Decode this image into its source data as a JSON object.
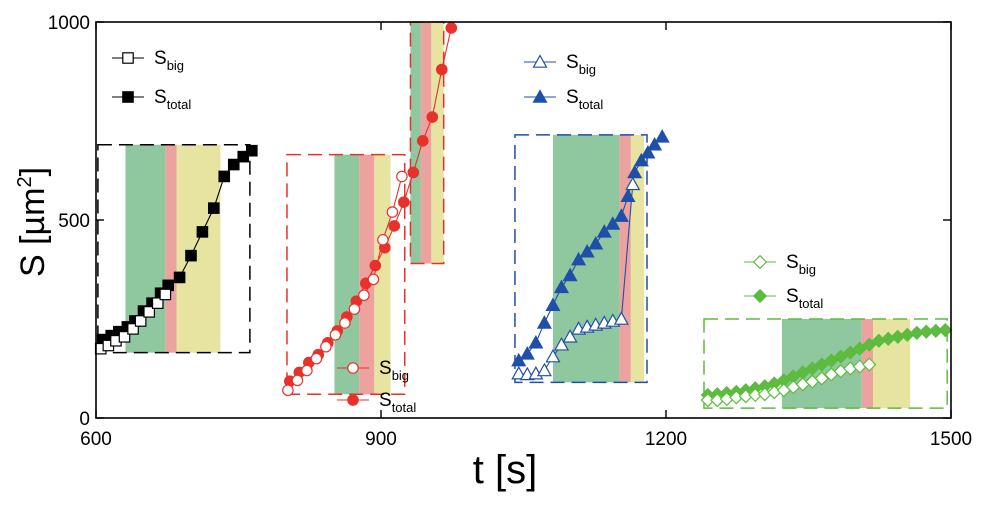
{
  "chart_data": {
    "type": "scatter",
    "xlabel": "t [s]",
    "ylabel_main": "S [µm",
    "ylabel_sup": "2",
    "ylabel_end": "]",
    "xlim": [
      600,
      1500
    ],
    "ylim": [
      0,
      1000
    ],
    "xticks": [
      {
        "value": 600,
        "label": "600"
      },
      {
        "value": 900,
        "label": "900"
      },
      {
        "value": 1200,
        "label": "1200"
      },
      {
        "value": 1500,
        "label": "1500"
      }
    ],
    "yticks": [
      {
        "value": 0,
        "label": "0"
      },
      {
        "value": 500,
        "label": "500"
      },
      {
        "value": 1000,
        "label": "1000"
      }
    ],
    "legend_main": "S",
    "legend_sub_big": "big",
    "legend_sub_total": "total",
    "groups": [
      {
        "color": "#000000",
        "marker": "square",
        "box": {
          "x": [
            602,
            762
          ],
          "y": [
            165,
            690
          ]
        },
        "bands": [
          {
            "x": [
              631,
              673
            ],
            "y": [
              165,
              690
            ],
            "color": "#8fc79f"
          },
          {
            "x": [
              673,
              685
            ],
            "y": [
              165,
              690
            ],
            "color": "#eca3a0"
          },
          {
            "x": [
              685,
              731
            ],
            "y": [
              165,
              690
            ],
            "color": "#e6e4a0"
          }
        ],
        "big": {
          "x": [
            605,
            613,
            621,
            630,
            639,
            647,
            656,
            665,
            673
          ],
          "y": [
            175,
            183,
            195,
            205,
            225,
            245,
            268,
            290,
            312
          ]
        },
        "total": {
          "x": [
            607,
            616,
            624,
            633,
            641,
            650,
            659,
            668,
            676,
            688,
            700,
            712,
            724,
            735,
            745,
            755,
            764
          ],
          "y": [
            198,
            208,
            218,
            230,
            245,
            270,
            290,
            315,
            335,
            355,
            410,
            470,
            530,
            610,
            640,
            660,
            675
          ]
        }
      },
      {
        "color": "#e8312a",
        "marker": "circle",
        "box": {
          "x": [
            801,
            925
          ],
          "y": [
            60,
            665
          ]
        },
        "bands": [
          {
            "x": [
              851,
              877
            ],
            "y": [
              60,
              665
            ],
            "color": "#8fc79f"
          },
          {
            "x": [
              877,
              893
            ],
            "y": [
              60,
              665
            ],
            "color": "#eca3a0"
          },
          {
            "x": [
              893,
              910
            ],
            "y": [
              60,
              665
            ],
            "color": "#e6e4a0"
          }
        ],
        "box2": {
          "x": [
            931,
            966
          ],
          "y": [
            390,
            1000
          ]
        },
        "bands2": [
          {
            "x": [
              931,
              942
            ],
            "y": [
              390,
              1000
            ],
            "color": "#8fc79f"
          },
          {
            "x": [
              942,
              953
            ],
            "y": [
              390,
              1000
            ],
            "color": "#eca3a0"
          },
          {
            "x": [
              953,
              966
            ],
            "y": [
              390,
              1000
            ],
            "color": "#e6e4a0"
          }
        ],
        "big": {
          "x": [
            802,
            812,
            822,
            832,
            842,
            852,
            862,
            872,
            882,
            892,
            902,
            912,
            922
          ],
          "y": [
            70,
            95,
            120,
            150,
            180,
            210,
            240,
            275,
            310,
            350,
            450,
            520,
            610
          ]
        },
        "total": {
          "x": [
            804,
            814,
            824,
            834,
            844,
            854,
            864,
            874,
            884,
            894,
            904,
            914,
            924,
            934,
            944,
            954,
            964,
            974
          ],
          "y": [
            93,
            115,
            140,
            160,
            190,
            220,
            255,
            295,
            340,
            385,
            430,
            485,
            545,
            620,
            700,
            760,
            880,
            985
          ]
        }
      },
      {
        "color": "#1f4fa8",
        "marker": "triangle",
        "box": {
          "x": [
            1041,
            1180
          ],
          "y": [
            90,
            715
          ]
        },
        "bands": [
          {
            "x": [
              1081,
              1151
            ],
            "y": [
              90,
              715
            ],
            "color": "#8fc79f"
          },
          {
            "x": [
              1151,
              1163
            ],
            "y": [
              90,
              715
            ],
            "color": "#eca3a0"
          },
          {
            "x": [
              1163,
              1177
            ],
            "y": [
              90,
              715
            ],
            "color": "#e6e4a0"
          }
        ],
        "big": {
          "x": [
            1045,
            1054,
            1063,
            1072,
            1081,
            1090,
            1099,
            1108,
            1117,
            1126,
            1135,
            1144,
            1153,
            1165
          ],
          "y": [
            112,
            110,
            112,
            120,
            155,
            185,
            205,
            225,
            230,
            235,
            240,
            245,
            250,
            590
          ]
        },
        "total": {
          "x": [
            1045,
            1054,
            1063,
            1072,
            1081,
            1090,
            1099,
            1108,
            1117,
            1126,
            1135,
            1144,
            1153,
            1160,
            1167,
            1174,
            1181,
            1188,
            1196
          ],
          "y": [
            145,
            162,
            190,
            240,
            285,
            330,
            360,
            400,
            420,
            440,
            470,
            490,
            510,
            560,
            620,
            650,
            670,
            690,
            710
          ]
        }
      },
      {
        "color": "#5dbb3f",
        "marker": "diamond",
        "box": {
          "x": [
            1240,
            1496
          ],
          "y": [
            25,
            250
          ]
        },
        "bands": [
          {
            "x": [
              1322,
              1406
            ],
            "y": [
              25,
              250
            ],
            "color": "#8fc79f"
          },
          {
            "x": [
              1406,
              1418
            ],
            "y": [
              25,
              250
            ],
            "color": "#eca3a0"
          },
          {
            "x": [
              1418,
              1457
            ],
            "y": [
              25,
              250
            ],
            "color": "#e6e4a0"
          }
        ],
        "big": {
          "x": [
            1244,
            1254,
            1264,
            1274,
            1284,
            1294,
            1304,
            1314,
            1324,
            1334,
            1344,
            1354,
            1364,
            1374,
            1384,
            1394,
            1404,
            1414
          ],
          "y": [
            45,
            45,
            48,
            52,
            55,
            58,
            60,
            65,
            70,
            78,
            85,
            92,
            100,
            110,
            118,
            125,
            130,
            135
          ]
        },
        "total": {
          "x": [
            1244,
            1254,
            1264,
            1274,
            1284,
            1294,
            1304,
            1314,
            1324,
            1334,
            1344,
            1354,
            1364,
            1374,
            1384,
            1394,
            1404,
            1414,
            1424,
            1434,
            1444,
            1454,
            1464,
            1474,
            1484,
            1494
          ],
          "y": [
            58,
            60,
            63,
            66,
            70,
            75,
            80,
            87,
            95,
            105,
            115,
            125,
            135,
            145,
            155,
            165,
            175,
            185,
            195,
            200,
            205,
            210,
            215,
            218,
            220,
            222
          ]
        }
      }
    ]
  }
}
